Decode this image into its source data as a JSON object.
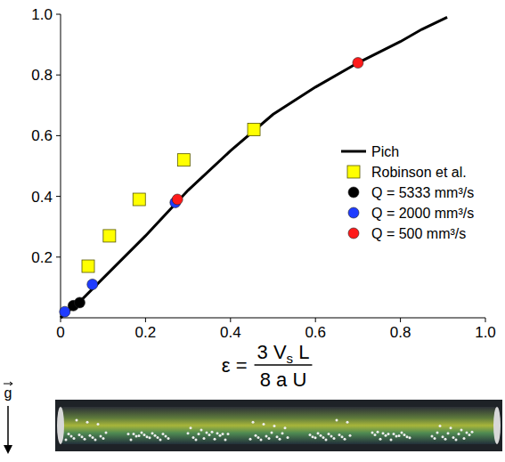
{
  "chart_data": {
    "type": "scatter",
    "x_label": {
      "prefix": "ε =",
      "numerator_parts": [
        "3 V",
        "s",
        " L"
      ],
      "denominator": "8 a U"
    },
    "annotations": [
      {
        "text": "g"
      }
    ],
    "xlim": [
      0,
      1
    ],
    "ylim": [
      0,
      1
    ],
    "xticks": [
      0,
      0.2,
      0.4,
      0.6,
      0.8,
      {
        "value": 1,
        "label": "1.0"
      }
    ],
    "yticks": [
      0.2,
      0.4,
      0.6,
      0.8,
      {
        "value": 1,
        "label": "1.0"
      }
    ],
    "grid": false,
    "legend": "right",
    "series": [
      {
        "name": "Pich",
        "type": "line",
        "color": "#000000",
        "line_style": "solid",
        "x": [
          0,
          0.05,
          0.1,
          0.2,
          0.3,
          0.4,
          0.5,
          0.6,
          0.7,
          0.8,
          0.85,
          0.91
        ],
        "values": [
          0,
          0.06,
          0.13,
          0.27,
          0.42,
          0.55,
          0.67,
          0.76,
          0.84,
          0.91,
          0.95,
          0.99
        ]
      },
      {
        "name": "Robinson et al.",
        "type": "scatter",
        "marker": "square",
        "color": "#ffff00",
        "x": [
          0.065,
          0.115,
          0.185,
          0.29,
          0.455
        ],
        "values": [
          0.17,
          0.27,
          0.39,
          0.52,
          0.62
        ]
      },
      {
        "name": "Q = 5333 mm³/s",
        "type": "scatter",
        "marker": "circle",
        "color": "#000000",
        "x": [
          0.03,
          0.045
        ],
        "values": [
          0.04,
          0.05
        ]
      },
      {
        "name": "Q = 2000 mm³/s",
        "type": "scatter",
        "marker": "circle",
        "color": "#1f3cff",
        "x": [
          0.01,
          0.075,
          0.27
        ],
        "values": [
          0.02,
          0.11,
          0.38
        ]
      },
      {
        "name": "Q = 500 mm³/s",
        "type": "scatter",
        "marker": "circle",
        "color": "#ff1a1a",
        "x": [
          0.275,
          0.7
        ],
        "values": [
          0.39,
          0.84
        ]
      }
    ]
  }
}
